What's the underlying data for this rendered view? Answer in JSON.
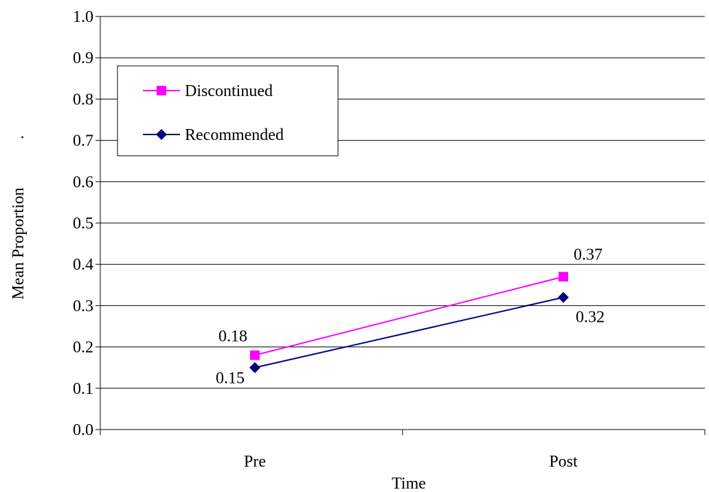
{
  "chart_data": {
    "type": "line",
    "title": "",
    "xlabel": "Time",
    "ylabel": "Mean Proportion",
    "ylabel_mark": ".",
    "categories": [
      "Pre",
      "Post"
    ],
    "ylim": [
      0,
      1
    ],
    "yticks": [
      "0.0",
      "0.1",
      "0.2",
      "0.3",
      "0.4",
      "0.5",
      "0.6",
      "0.7",
      "0.8",
      "0.9",
      "1.0"
    ],
    "grid": true,
    "legend_position": "top-left",
    "series": [
      {
        "name": "Discontinued",
        "values": [
          0.18,
          0.37
        ],
        "labels": [
          "0.18",
          "0.37"
        ],
        "color": "#ff00ff",
        "marker": "square"
      },
      {
        "name": "Recommended",
        "values": [
          0.15,
          0.32
        ],
        "labels": [
          "0.15",
          "0.32"
        ],
        "color": "#000080",
        "marker": "diamond"
      }
    ]
  }
}
